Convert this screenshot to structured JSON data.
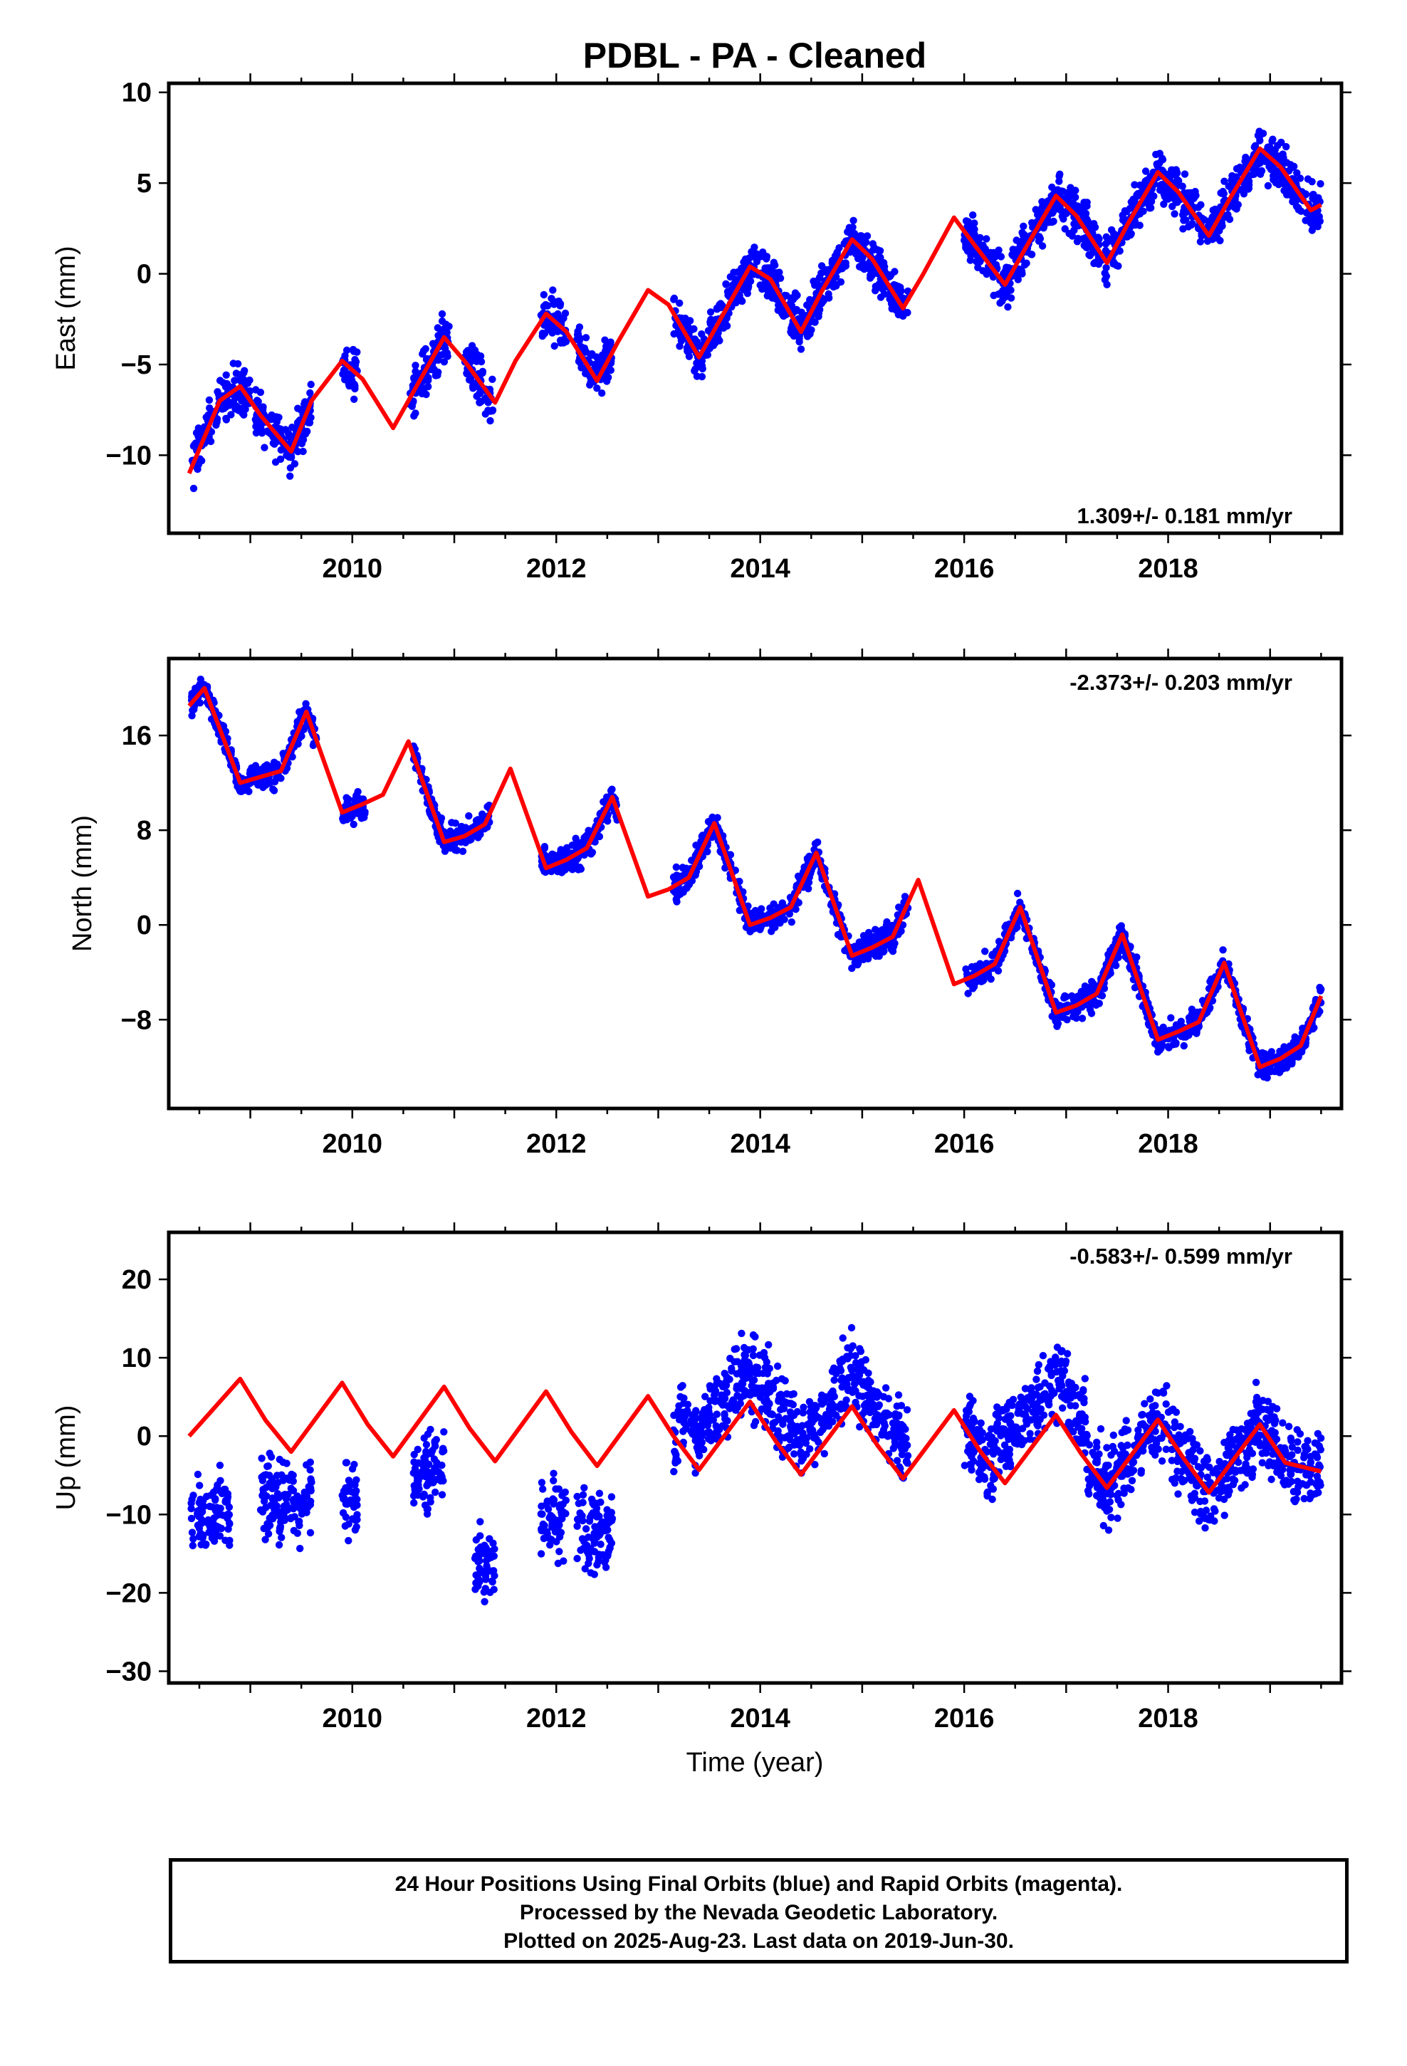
{
  "title": "PDBL  - PA - Cleaned",
  "xlabel": "Time (year)",
  "footer_lines": [
    "24 Hour Positions Using Final Orbits (blue) and Rapid Orbits (magenta).",
    "Processed by the Nevada Geodetic Laboratory.",
    "Plotted on 2025-Aug-23. Last data on 2019-Jun-30."
  ],
  "colors": {
    "points": "#0000ff",
    "model": "#ff0000",
    "frame": "#000000"
  },
  "chart_data": [
    {
      "type": "scatter",
      "name": "east",
      "ylabel": "East (mm)",
      "rate_label": "1.309+/- 0.181 mm/yr",
      "xlim": [
        2008.2,
        2019.7
      ],
      "ylim": [
        -14.3,
        10.5
      ],
      "xticks": [
        2010,
        2012,
        2014,
        2016,
        2018
      ],
      "yticks": [
        -10,
        -5,
        0,
        5,
        10
      ],
      "ytick_labels": [
        "−10",
        "−5",
        "0",
        "5",
        "10"
      ],
      "series": [
        {
          "kind": "points",
          "segments": [
            [
              2008.42,
              2008.67
            ],
            [
              2008.67,
              2009.0
            ],
            [
              2009.05,
              2009.42
            ],
            [
              2009.42,
              2009.6
            ],
            [
              2009.9,
              2010.05
            ],
            [
              2010.55,
              2010.95
            ],
            [
              2011.1,
              2011.38
            ],
            [
              2011.85,
              2012.1
            ],
            [
              2012.2,
              2012.55
            ],
            [
              2013.15,
              2015.45
            ],
            [
              2016.0,
              2019.5
            ]
          ]
        },
        {
          "kind": "model",
          "x": [
            2008.4,
            2008.7,
            2008.9,
            2009.1,
            2009.4,
            2009.6,
            2009.9,
            2010.1,
            2010.4,
            2010.6,
            2010.9,
            2011.1,
            2011.4,
            2011.6,
            2011.9,
            2012.1,
            2012.4,
            2012.6,
            2012.9,
            2013.1,
            2013.4,
            2013.6,
            2013.9,
            2014.1,
            2014.4,
            2014.6,
            2014.9,
            2015.1,
            2015.4,
            2015.6,
            2015.9,
            2016.1,
            2016.4,
            2016.6,
            2016.9,
            2017.1,
            2017.4,
            2017.6,
            2017.9,
            2018.1,
            2018.4,
            2018.6,
            2018.9,
            2019.1,
            2019.4,
            2019.5
          ],
          "y": [
            -11.0,
            -7.0,
            -6.2,
            -7.8,
            -9.8,
            -7.0,
            -4.8,
            -5.8,
            -8.5,
            -6.5,
            -3.5,
            -4.8,
            -7.1,
            -4.8,
            -2.2,
            -3.2,
            -5.9,
            -3.8,
            -0.9,
            -1.7,
            -4.6,
            -2.6,
            0.4,
            -0.3,
            -3.2,
            -1.0,
            1.9,
            0.8,
            -1.9,
            0.0,
            3.1,
            1.6,
            -0.6,
            1.4,
            4.3,
            3.2,
            0.6,
            2.7,
            5.6,
            4.5,
            2.1,
            4.1,
            6.9,
            5.9,
            3.5,
            3.8
          ]
        }
      ]
    },
    {
      "type": "scatter",
      "name": "north",
      "ylabel": "North (mm)",
      "rate_label": "-2.373+/- 0.203 mm/yr",
      "xlim": [
        2008.2,
        2019.7
      ],
      "ylim": [
        -15.5,
        22.5
      ],
      "xticks": [
        2010,
        2012,
        2014,
        2016,
        2018
      ],
      "yticks": [
        -8,
        0,
        8,
        16
      ],
      "ytick_labels": [
        "−8",
        "0",
        "8",
        "16"
      ],
      "series": [
        {
          "kind": "points",
          "segments": [
            [
              2008.42,
              2009.65
            ],
            [
              2009.9,
              2010.15
            ],
            [
              2010.6,
              2011.35
            ],
            [
              2011.85,
              2012.6
            ],
            [
              2013.15,
              2015.45
            ],
            [
              2016.0,
              2019.5
            ]
          ]
        },
        {
          "kind": "model",
          "x": [
            2008.4,
            2008.55,
            2008.9,
            2009.1,
            2009.3,
            2009.55,
            2009.9,
            2010.1,
            2010.3,
            2010.55,
            2010.9,
            2011.1,
            2011.3,
            2011.55,
            2011.9,
            2012.1,
            2012.3,
            2012.55,
            2012.9,
            2013.1,
            2013.3,
            2013.55,
            2013.9,
            2014.1,
            2014.3,
            2014.55,
            2014.9,
            2015.1,
            2015.3,
            2015.55,
            2015.9,
            2016.1,
            2016.3,
            2016.55,
            2016.9,
            2017.1,
            2017.3,
            2017.55,
            2017.9,
            2018.1,
            2018.3,
            2018.55,
            2018.9,
            2019.1,
            2019.3,
            2019.5
          ],
          "y": [
            18.5,
            20.0,
            12.0,
            12.5,
            13.0,
            18.0,
            9.5,
            10.2,
            11.0,
            15.5,
            7.0,
            7.5,
            8.5,
            13.2,
            4.8,
            5.5,
            6.5,
            10.8,
            2.4,
            3.0,
            4.0,
            8.6,
            0.0,
            0.6,
            1.5,
            6.1,
            -2.6,
            -1.9,
            -1.0,
            3.8,
            -5.0,
            -4.3,
            -3.3,
            1.5,
            -7.4,
            -6.8,
            -5.8,
            -0.8,
            -9.7,
            -9.0,
            -8.2,
            -3.2,
            -12.0,
            -11.3,
            -10.2,
            -6.0
          ]
        }
      ]
    },
    {
      "type": "scatter",
      "name": "up",
      "ylabel": "Up (mm)",
      "rate_label": "-0.583+/- 0.599 mm/yr",
      "xlim": [
        2008.2,
        2019.7
      ],
      "ylim": [
        -31.5,
        26.0
      ],
      "xticks": [
        2010,
        2012,
        2014,
        2016,
        2018
      ],
      "yticks": [
        -30,
        -20,
        -10,
        0,
        10,
        20
      ],
      "ytick_labels": [
        "−30",
        "−20",
        "−10",
        "0",
        "10",
        "20"
      ],
      "series": [
        {
          "kind": "points",
          "segments": [
            [
              2008.42,
              2008.8
            ],
            [
              2009.1,
              2009.6
            ],
            [
              2009.9,
              2010.05
            ],
            [
              2010.6,
              2010.9
            ],
            [
              2011.2,
              2011.4
            ],
            [
              2011.85,
              2012.1
            ],
            [
              2012.2,
              2012.55
            ],
            [
              2013.15,
              2015.45
            ],
            [
              2016.0,
              2019.5
            ]
          ]
        },
        {
          "kind": "model",
          "x": [
            2008.4,
            2008.9,
            2009.15,
            2009.4,
            2009.9,
            2010.15,
            2010.4,
            2010.9,
            2011.15,
            2011.4,
            2011.9,
            2012.15,
            2012.4,
            2012.9,
            2013.15,
            2013.4,
            2013.9,
            2014.15,
            2014.4,
            2014.9,
            2015.15,
            2015.4,
            2015.9,
            2016.15,
            2016.4,
            2016.9,
            2017.15,
            2017.4,
            2017.9,
            2018.15,
            2018.4,
            2018.9,
            2019.15,
            2019.5
          ],
          "y": [
            0.0,
            7.3,
            2.0,
            -2.0,
            6.8,
            1.5,
            -2.6,
            6.3,
            1.0,
            -3.2,
            5.7,
            0.5,
            -3.8,
            5.1,
            0.0,
            -4.3,
            4.4,
            -0.6,
            -4.9,
            3.8,
            -1.2,
            -5.4,
            3.3,
            -1.8,
            -6.0,
            2.7,
            -2.3,
            -6.6,
            2.1,
            -2.8,
            -7.2,
            1.5,
            -3.4,
            -4.5
          ]
        }
      ]
    }
  ]
}
